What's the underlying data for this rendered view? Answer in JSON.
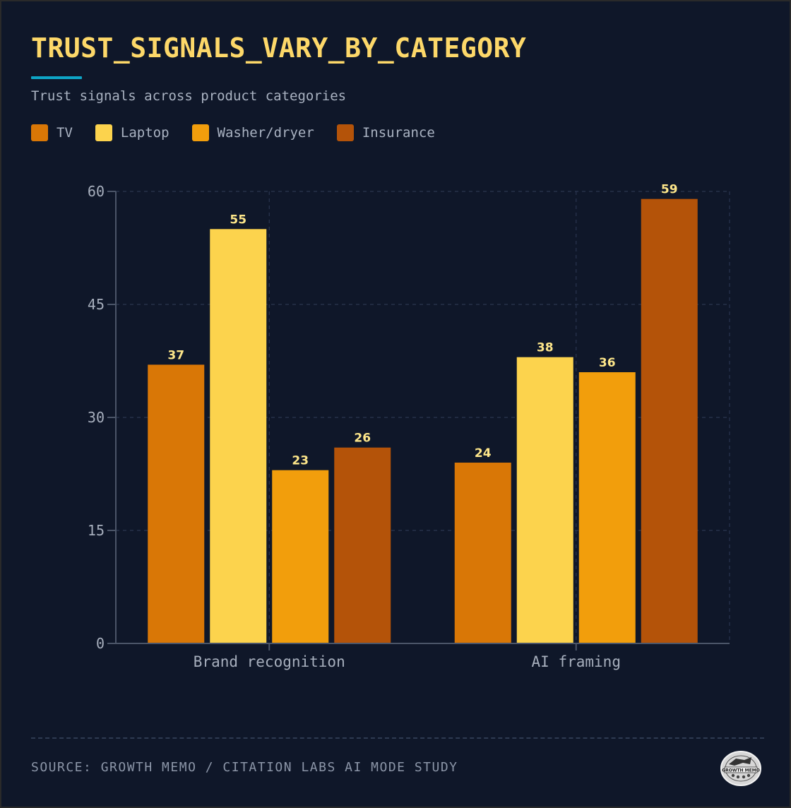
{
  "title": "TRUST_SIGNALS_VARY_BY_CATEGORY",
  "subtitle": "Trust signals across product categories",
  "source": "SOURCE: GROWTH MEMO / CITATION LABS AI MODE STUDY",
  "logo_text": "GROWTH MEMO",
  "colors": {
    "background": "#0f1729",
    "title": "#fdd869",
    "accent": "#0ea5c6",
    "label": "#fde68a",
    "axis": "#4b5568",
    "grid": "#2a3550",
    "tick": "#a7afbd"
  },
  "chart_data": {
    "type": "bar",
    "title": "TRUST_SIGNALS_VARY_BY_CATEGORY",
    "subtitle": "Trust signals across product categories",
    "xlabel": "",
    "ylabel": "",
    "categories": [
      "Brand recognition",
      "AI framing"
    ],
    "series": [
      {
        "name": "TV",
        "color": "#d97706",
        "values": [
          37,
          24
        ]
      },
      {
        "name": "Laptop",
        "color": "#fcd34d",
        "values": [
          55,
          38
        ]
      },
      {
        "name": "Washer/dryer",
        "color": "#f29e0c",
        "values": [
          23,
          36
        ]
      },
      {
        "name": "Insurance",
        "color": "#b45309",
        "values": [
          26,
          59
        ]
      }
    ],
    "ylim": [
      0,
      60
    ],
    "yticks": [
      0,
      15,
      30,
      45,
      60
    ],
    "grid": true,
    "legend": "top-left"
  }
}
